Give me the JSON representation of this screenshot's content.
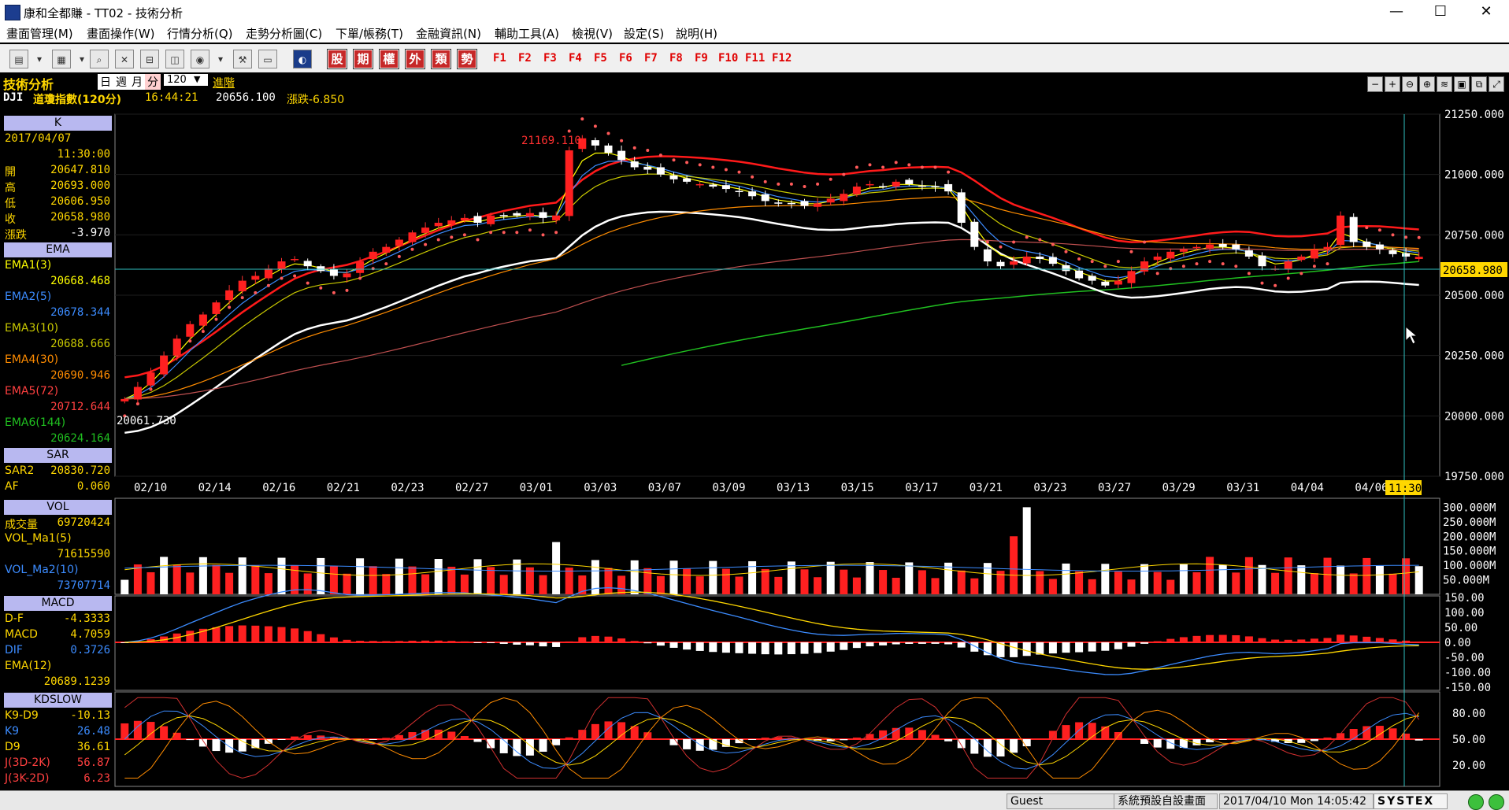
{
  "window": {
    "title": "康和全都賺 - TT02 - 技術分析",
    "minimize": "—",
    "maximize": "☐",
    "close": "✕"
  },
  "menu": [
    "畫面管理(M)",
    "畫面操作(W)",
    "行情分析(Q)",
    "走勢分析圖(C)",
    "下單/帳務(T)",
    "金融資訊(N)",
    "輔助工具(A)",
    "檢視(V)",
    "設定(S)",
    "說明(H)"
  ],
  "toolbar": {
    "cat_buttons": [
      "股",
      "期",
      "權",
      "外",
      "類",
      "勢"
    ],
    "fkeys": [
      "F1",
      "F2",
      "F3",
      "F4",
      "F5",
      "F6",
      "F7",
      "F8",
      "F9",
      "F10",
      "F11",
      "F12"
    ]
  },
  "header": {
    "module": "技術分析",
    "periods": [
      "日",
      "週",
      "月",
      "分"
    ],
    "period_value": "120",
    "advanced": "進階",
    "symbol": "DJI",
    "symbol_name": "道瓊指數(120分)",
    "time": "16:44:21",
    "price": "20656.100",
    "change": "漲跌-6.850",
    "controls": [
      "−",
      "+",
      "⊖",
      "⊕",
      "≋",
      "▣",
      "⧉",
      "⤢"
    ]
  },
  "left": {
    "k": {
      "title": "K",
      "date": "2017/04/07",
      "time": "11:30:00",
      "rows": [
        {
          "label": "開",
          "value": "20647.810"
        },
        {
          "label": "高",
          "value": "20693.000"
        },
        {
          "label": "低",
          "value": "20606.950"
        },
        {
          "label": "收",
          "value": "20658.980"
        },
        {
          "label": "漲跌",
          "value": "-3.970"
        }
      ]
    },
    "ema": {
      "title": "EMA",
      "rows": [
        {
          "label": "EMA1(3)",
          "value": "20668.468",
          "color": "#ffff00"
        },
        {
          "label": "EMA2(5)",
          "value": "20678.344",
          "color": "#3c8cff"
        },
        {
          "label": "EMA3(10)",
          "value": "20688.666",
          "color": "#c8c800"
        },
        {
          "label": "EMA4(30)",
          "value": "20690.946",
          "color": "#ff8c00"
        },
        {
          "label": "EMA5(72)",
          "value": "20712.644",
          "color": "#ff4040"
        },
        {
          "label": "EMA6(144)",
          "value": "20624.164",
          "color": "#20c020"
        }
      ]
    },
    "sar": {
      "title": "SAR",
      "rows": [
        {
          "label": "SAR2",
          "value": "20830.720"
        },
        {
          "label": "AF",
          "value": "0.060"
        }
      ]
    },
    "vol": {
      "title": "VOL",
      "rows": [
        {
          "label": "成交量",
          "value": "69720424"
        },
        {
          "label": "VOL_Ma1(5)",
          "value": "71615590"
        },
        {
          "label": "VOL_Ma2(10)",
          "value": "73707714"
        }
      ]
    },
    "macd": {
      "title": "MACD",
      "rows": [
        {
          "label": "D-F",
          "value": "-4.3333"
        },
        {
          "label": "MACD",
          "value": "4.7059"
        },
        {
          "label": "DIF",
          "value": "0.3726"
        },
        {
          "label": "EMA(12)",
          "value": "20689.1239"
        }
      ]
    },
    "kd": {
      "title": "KDSLOW",
      "rows": [
        {
          "label": "K9-D9",
          "value": "-10.13"
        },
        {
          "label": "K9",
          "value": "26.48"
        },
        {
          "label": "D9",
          "value": "36.61"
        },
        {
          "label": "J(3D-2K)",
          "value": "56.87"
        },
        {
          "label": "J(3K-2D)",
          "value": "6.23"
        }
      ]
    }
  },
  "main": {
    "max_label": "21169.110",
    "min_label": "20061.730",
    "last_price_tag": "20658.980",
    "cursor_time": "11:30"
  },
  "axes": {
    "price": [
      "21250.000",
      "21000.000",
      "20750.000",
      "20500.000",
      "20250.000",
      "20000.000",
      "19750.000"
    ],
    "dates": [
      "02/10",
      "02/14",
      "02/16",
      "02/21",
      "02/23",
      "02/27",
      "03/01",
      "03/03",
      "03/07",
      "03/09",
      "03/13",
      "03/15",
      "03/17",
      "03/21",
      "03/23",
      "03/27",
      "03/29",
      "03/31",
      "04/04",
      "04/06"
    ],
    "vol": [
      "300.000M",
      "250.000M",
      "200.000M",
      "150.000M",
      "100.000M",
      "50.000M"
    ],
    "macd": [
      "150.00",
      "100.00",
      "50.00",
      "0.00",
      "-50.00",
      "-100.00",
      "-150.00"
    ],
    "kd": [
      "80.00",
      "50.00",
      "20.00"
    ]
  },
  "status": {
    "user": "Guest",
    "layout": "系統預設自設畫面",
    "datetime": "2017/04/10 Mon 14:05:42",
    "brand": "SYSTEX"
  },
  "chart_data": {
    "type": "line",
    "title": "",
    "series_close": [
      20070,
      20120,
      20180,
      20250,
      20320,
      20380,
      20420,
      20470,
      20520,
      20560,
      20580,
      20610,
      20640,
      20650,
      20620,
      20600,
      20580,
      20590,
      20640,
      20680,
      20700,
      20730,
      20760,
      20780,
      20800,
      20810,
      20820,
      20800,
      20830,
      20830,
      20830,
      20840,
      20820,
      20830,
      21100,
      21150,
      21120,
      21090,
      21060,
      21030,
      21020,
      21000,
      20980,
      20970,
      20960,
      20950,
      20940,
      20930,
      20910,
      20890,
      20880,
      20880,
      20870,
      20880,
      20900,
      20920,
      20950,
      20960,
      20950,
      20970,
      20960,
      20950,
      20950,
      20930,
      20800,
      20700,
      20640,
      20620,
      20640,
      20660,
      20650,
      20630,
      20600,
      20570,
      20560,
      20540,
      20560,
      20600,
      20640,
      20660,
      20680,
      20690,
      20700,
      20710,
      20700,
      20690,
      20660,
      20620,
      20610,
      20640,
      20660,
      20690,
      20700,
      20830,
      20720,
      20700,
      20690,
      20670,
      20660,
      20659
    ],
    "x_start": "02/08",
    "x_end": "04/07",
    "ylim": [
      19750,
      21250
    ]
  }
}
